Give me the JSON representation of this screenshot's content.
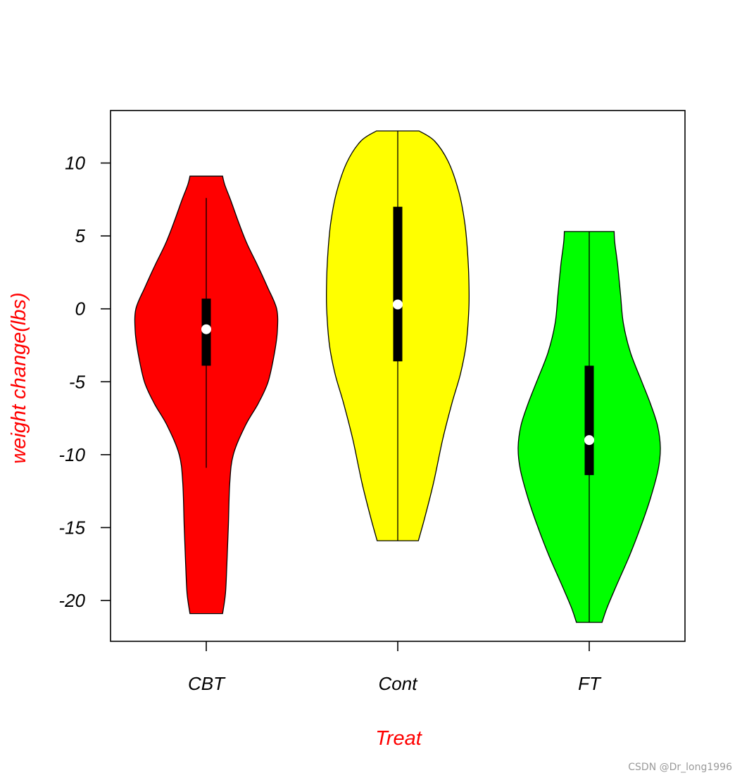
{
  "chart_data": {
    "type": "violin",
    "categories": [
      "CBT",
      "Cont",
      "FT"
    ],
    "xlabel": "Treat",
    "ylabel": "weight change(lbs)",
    "label_color": "#ff0000",
    "ylim": [
      -22.8,
      13.6
    ],
    "yticks": [
      10,
      5,
      0,
      -5,
      -10,
      -15,
      -20
    ],
    "ytick_labels": [
      "10",
      "5",
      "0",
      "-5",
      "-10",
      "-15",
      "-20"
    ],
    "grid": false,
    "series": [
      {
        "category": "CBT",
        "color": "#ff0000",
        "min": -20.9,
        "max": 9.1,
        "q1": -3.9,
        "median": -1.4,
        "q3": 0.7,
        "whisker_low": -10.9,
        "whisker_high": 7.6,
        "density": [
          [
            -20.9,
            0.23
          ],
          [
            -19.5,
            0.27
          ],
          [
            -17.5,
            0.29
          ],
          [
            -15.0,
            0.31
          ],
          [
            -12.0,
            0.33
          ],
          [
            -10.0,
            0.38
          ],
          [
            -8.0,
            0.55
          ],
          [
            -6.5,
            0.73
          ],
          [
            -5.0,
            0.87
          ],
          [
            -3.0,
            0.96
          ],
          [
            -1.5,
            1.0
          ],
          [
            0.0,
            0.99
          ],
          [
            1.5,
            0.86
          ],
          [
            3.0,
            0.72
          ],
          [
            4.5,
            0.57
          ],
          [
            6.0,
            0.45
          ],
          [
            7.5,
            0.34
          ],
          [
            8.5,
            0.26
          ],
          [
            9.1,
            0.23
          ]
        ]
      },
      {
        "category": "Cont",
        "color": "#ffff00",
        "min": -15.9,
        "max": 12.2,
        "q1": -3.6,
        "median": 0.3,
        "q3": 7.0,
        "whisker_low": -15.9,
        "whisker_high": 12.2,
        "density": [
          [
            -15.9,
            0.29
          ],
          [
            -14.5,
            0.37
          ],
          [
            -12.0,
            0.5
          ],
          [
            -9.0,
            0.63
          ],
          [
            -6.5,
            0.76
          ],
          [
            -4.5,
            0.88
          ],
          [
            -2.5,
            0.96
          ],
          [
            0.0,
            1.0
          ],
          [
            2.0,
            1.0
          ],
          [
            4.0,
            0.98
          ],
          [
            6.0,
            0.94
          ],
          [
            8.0,
            0.86
          ],
          [
            10.0,
            0.72
          ],
          [
            11.5,
            0.52
          ],
          [
            12.2,
            0.3
          ]
        ]
      },
      {
        "category": "FT",
        "color": "#00ff00",
        "min": -21.5,
        "max": 5.3,
        "q1": -11.4,
        "median": -9.0,
        "q3": -3.9,
        "whisker_low": -21.5,
        "whisker_high": 5.3,
        "density": [
          [
            -21.5,
            0.18
          ],
          [
            -20.5,
            0.25
          ],
          [
            -19.0,
            0.38
          ],
          [
            -17.0,
            0.56
          ],
          [
            -15.0,
            0.72
          ],
          [
            -13.0,
            0.86
          ],
          [
            -11.0,
            0.97
          ],
          [
            -9.5,
            1.0
          ],
          [
            -8.0,
            0.96
          ],
          [
            -6.5,
            0.86
          ],
          [
            -5.0,
            0.74
          ],
          [
            -3.0,
            0.58
          ],
          [
            -1.0,
            0.48
          ],
          [
            1.0,
            0.44
          ],
          [
            3.0,
            0.4
          ],
          [
            4.5,
            0.36
          ],
          [
            5.3,
            0.35
          ]
        ]
      }
    ]
  },
  "watermark": "CSDN @Dr_long1996"
}
